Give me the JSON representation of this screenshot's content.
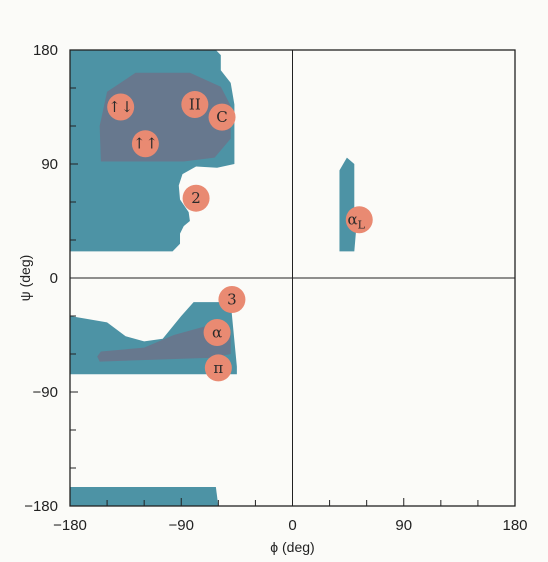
{
  "colors": {
    "allowed_region": "#4d93a5",
    "favored_region": "#67788e",
    "badge": "#e98a72",
    "axis": "#222222",
    "background": "#fbfbf8"
  },
  "axes": {
    "x_title": "ϕ (deg)",
    "y_title": "ψ (deg)",
    "x_range": [
      -180,
      180
    ],
    "y_range": [
      -180,
      180
    ],
    "x_tick_labels": [
      {
        "value": -180,
        "label": "−180"
      },
      {
        "value": -90,
        "label": "−90"
      },
      {
        "value": 0,
        "label": "0"
      },
      {
        "value": 90,
        "label": "90"
      },
      {
        "value": 180,
        "label": "180"
      }
    ],
    "y_tick_labels": [
      {
        "value": 180,
        "label": "180"
      },
      {
        "value": 90,
        "label": "90"
      },
      {
        "value": 0,
        "label": "0"
      },
      {
        "value": -90,
        "label": "−90"
      },
      {
        "value": -180,
        "label": "−180"
      }
    ],
    "minor_tick_step": 30
  },
  "labels": [
    {
      "id": "antiparallel",
      "text": "↑↓",
      "sub": "",
      "phi": -139,
      "psi": 135
    },
    {
      "id": "polyproline",
      "text": "II",
      "sub": "",
      "phi": -79,
      "psi": 137
    },
    {
      "id": "collagen",
      "text": "C",
      "sub": "",
      "phi": -57,
      "psi": 127
    },
    {
      "id": "parallel",
      "text": "↑↑",
      "sub": "",
      "phi": -119,
      "psi": 106
    },
    {
      "id": "2-7-ribbon",
      "text": "2",
      "sub": "",
      "phi": -78,
      "psi": 63
    },
    {
      "id": "left-helix",
      "text": "α",
      "sub": "L",
      "phi": 54,
      "psi": 46
    },
    {
      "id": "3-10-helix",
      "text": "3",
      "sub": "",
      "phi": -49,
      "psi": -17
    },
    {
      "id": "alpha-helix",
      "text": "α",
      "sub": "",
      "phi": -61,
      "psi": -43
    },
    {
      "id": "pi-helix",
      "text": "π",
      "sub": "",
      "phi": -60,
      "psi": -71
    }
  ],
  "regions": {
    "allowed": [
      [
        [
          -180,
          180
        ],
        [
          -62,
          180
        ],
        [
          -58,
          176
        ],
        [
          -58,
          164
        ],
        [
          -50,
          154
        ],
        [
          -47,
          137
        ],
        [
          -47,
          90
        ],
        [
          -61,
          87
        ],
        [
          -78,
          88
        ],
        [
          -89,
          82
        ],
        [
          -92,
          73
        ],
        [
          -91,
          62
        ],
        [
          -84,
          52
        ],
        [
          -83,
          45
        ],
        [
          -88,
          41
        ],
        [
          -91,
          35
        ],
        [
          -91,
          27
        ],
        [
          -97,
          21
        ],
        [
          -180,
          21
        ]
      ],
      [
        [
          -180,
          -30
        ],
        [
          -150,
          -35
        ],
        [
          -135,
          -46
        ],
        [
          -120,
          -50
        ],
        [
          -105,
          -48
        ],
        [
          -90,
          -30
        ],
        [
          -80,
          -19
        ],
        [
          -50,
          -19
        ],
        [
          -45,
          -70
        ],
        [
          -45,
          -76
        ],
        [
          -180,
          -76
        ]
      ],
      [
        [
          -180,
          -165
        ],
        [
          -62,
          -165
        ],
        [
          -60,
          -180
        ],
        [
          -180,
          -180
        ]
      ],
      [
        [
          38,
          21
        ],
        [
          38,
          85
        ],
        [
          44,
          95
        ],
        [
          50,
          90
        ],
        [
          50,
          52
        ],
        [
          52,
          44
        ],
        [
          50,
          21
        ]
      ]
    ],
    "favored": [
      [
        [
          -150,
          147
        ],
        [
          -127,
          162
        ],
        [
          -83,
          162
        ],
        [
          -58,
          151
        ],
        [
          -50,
          136
        ],
        [
          -50,
          110
        ],
        [
          -63,
          95
        ],
        [
          -88,
          92
        ],
        [
          -155,
          92
        ],
        [
          -156,
          120
        ]
      ],
      [
        [
          -155,
          -58
        ],
        [
          -120,
          -55
        ],
        [
          -96,
          -45
        ],
        [
          -70,
          -38
        ],
        [
          -55,
          -37
        ],
        [
          -50,
          -42
        ],
        [
          -50,
          -60
        ],
        [
          -65,
          -63
        ],
        [
          -156,
          -66
        ],
        [
          -158,
          -62
        ]
      ]
    ]
  }
}
